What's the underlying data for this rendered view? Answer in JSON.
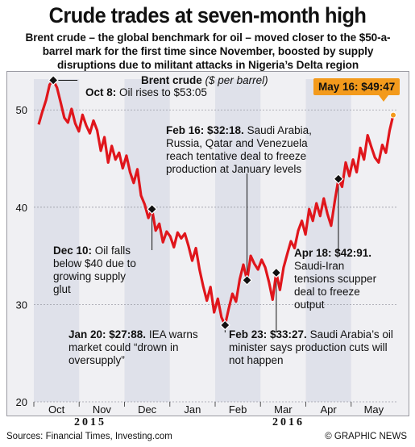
{
  "header": {
    "title": "Crude trades at seven-month high",
    "subtitle": "Brent crude – the global benchmark for oil – moved closer to the $50-a-barrel mark for the first time since November, boosted by supply disruptions due to militant attacks in Nigeria’s Delta region"
  },
  "footer": {
    "sources": "Sources: Financial Times, Investing.com",
    "credit": "© GRAPHIC NEWS"
  },
  "colors": {
    "line": "#e0161c",
    "band": "#dfe1ea",
    "tag": "#f39a1c"
  },
  "chart_data": {
    "type": "line",
    "title": "Brent crude",
    "unit": "($ per barrel)",
    "ylim": [
      20,
      54
    ],
    "yticks": [
      20,
      30,
      40,
      50
    ],
    "months": [
      "Oct",
      "Nov",
      "Dec",
      "Jan",
      "Feb",
      "Mar",
      "Apr",
      "May"
    ],
    "years": [
      {
        "label": "2015",
        "month_index": 1
      },
      {
        "label": "2016",
        "month_index": 5
      }
    ],
    "grid": true,
    "series": [
      {
        "values": [
          48.5,
          49.8,
          51.0,
          52.6,
          53.05,
          52.3,
          50.8,
          49.2,
          48.7,
          50.1,
          48.6,
          47.8,
          49.5,
          48.4,
          47.6,
          48.9,
          47.9,
          45.8,
          47.2,
          44.6,
          46.3,
          44.9,
          45.6,
          44.0,
          45.3,
          43.6,
          42.5,
          43.9,
          41.2,
          40.3,
          38.9,
          39.8,
          37.6,
          38.3,
          36.4,
          37.5,
          37.0,
          35.9,
          37.4,
          36.8,
          37.3,
          36.0,
          34.5,
          35.8,
          33.6,
          31.9,
          30.4,
          31.8,
          29.2,
          30.6,
          28.7,
          27.88,
          29.6,
          31.1,
          30.3,
          32.6,
          34.1,
          32.5,
          35.0,
          34.2,
          33.6,
          34.6,
          33.8,
          32.3,
          30.5,
          33.27,
          31.5,
          33.8,
          35.2,
          36.5,
          35.8,
          37.6,
          38.6,
          37.2,
          39.8,
          38.6,
          40.4,
          39.1,
          40.9,
          39.3,
          38.1,
          40.6,
          42.91,
          42.1,
          44.6,
          43.2,
          44.9,
          43.6,
          46.1,
          44.9,
          47.4,
          46.2,
          45.1,
          44.6,
          46.4,
          45.6,
          47.9,
          49.47
        ]
      }
    ],
    "annotations": [
      {
        "date": "Oct 8:",
        "text": "Oil rises to $53:05",
        "value": 53.05
      },
      {
        "date": "Dec 10:",
        "text": "Oil falls below $40 due to growing supply glut",
        "value": 40.0
      },
      {
        "date": "Jan 20: $27:88.",
        "text": "IEA warns market could “drown in oversupply”",
        "value": 27.88
      },
      {
        "date": "Feb 16: $32:18.",
        "text": "Saudi Arabia, Russia, Qatar and Venezuela reach tentative deal to freeze production at January levels",
        "value": 32.18
      },
      {
        "date": "Feb 23: $33:27.",
        "text": "Saudi Arabia’s oil minister says production cuts will not happen",
        "value": 33.27
      },
      {
        "date": "Apr 18: $42:91.",
        "text": "Saudi-Iran tensions scupper deal to freeze output",
        "value": 42.91
      }
    ],
    "current": {
      "label": "May 16: $49:47",
      "value": 49.47
    }
  }
}
